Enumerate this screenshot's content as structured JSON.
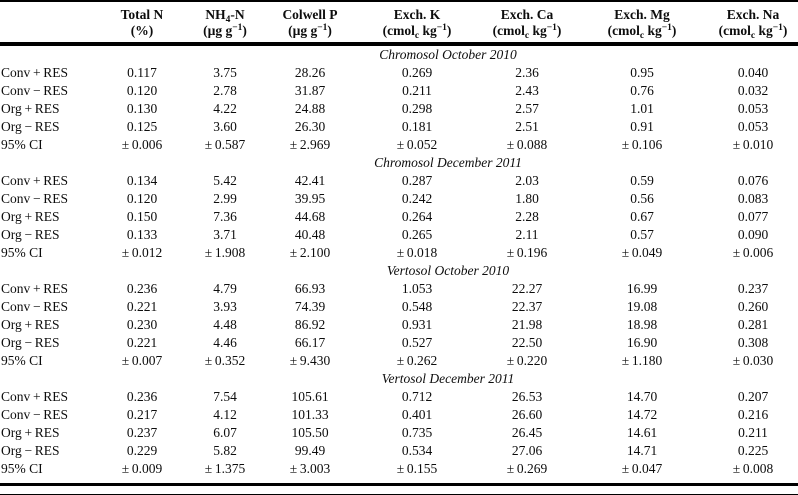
{
  "colors": {
    "background": "#ffffff",
    "text": "#0d0d0d",
    "rule": "#000000"
  },
  "table": {
    "row_label_header": "",
    "columns": [
      {
        "title": "Total N",
        "unit": "(%)"
      },
      {
        "title": "NH_{4}-N",
        "unit": "(µg g^{−1})"
      },
      {
        "title": "Colwell P",
        "unit": "(µg g^{−1})"
      },
      {
        "title": "Exch. K",
        "unit": "(cmol_{c} kg^{−1})"
      },
      {
        "title": "Exch. Ca",
        "unit": "(cmol_{c} kg^{−1})"
      },
      {
        "title": "Exch. Mg",
        "unit": "(cmol_{c} kg^{−1})"
      },
      {
        "title": "Exch. Na",
        "unit": "(cmol_{c} kg^{−1})"
      }
    ],
    "sections": [
      {
        "title": "Chromosol October 2010",
        "rows": [
          {
            "label": "Conv + RES",
            "values": [
              "0.117",
              "3.75",
              "28.26",
              "0.269",
              "2.36",
              "0.95",
              "0.040"
            ]
          },
          {
            "label": "Conv − RES",
            "values": [
              "0.120",
              "2.78",
              "31.87",
              "0.211",
              "2.43",
              "0.76",
              "0.032"
            ]
          },
          {
            "label": "Org + RES",
            "values": [
              "0.130",
              "4.22",
              "24.88",
              "0.298",
              "2.57",
              "1.01",
              "0.053"
            ]
          },
          {
            "label": "Org − RES",
            "values": [
              "0.125",
              "3.60",
              "26.30",
              "0.181",
              "2.51",
              "0.91",
              "0.053"
            ]
          },
          {
            "label": "95% CI",
            "values": [
              "± 0.006",
              "± 0.587",
              "± 2.969",
              "± 0.052",
              "± 0.088",
              "± 0.106",
              "± 0.010"
            ]
          }
        ]
      },
      {
        "title": "Chromosol December 2011",
        "rows": [
          {
            "label": "Conv + RES",
            "values": [
              "0.134",
              "5.42",
              "42.41",
              "0.287",
              "2.03",
              "0.59",
              "0.076"
            ]
          },
          {
            "label": "Conv − RES",
            "values": [
              "0.120",
              "2.99",
              "39.95",
              "0.242",
              "1.80",
              "0.56",
              "0.083"
            ]
          },
          {
            "label": "Org + RES",
            "values": [
              "0.150",
              "7.36",
              "44.68",
              "0.264",
              "2.28",
              "0.67",
              "0.077"
            ]
          },
          {
            "label": "Org − RES",
            "values": [
              "0.133",
              "3.71",
              "40.48",
              "0.265",
              "2.11",
              "0.57",
              "0.090"
            ]
          },
          {
            "label": "95% CI",
            "values": [
              "± 0.012",
              "± 1.908",
              "± 2.100",
              "± 0.018",
              "± 0.196",
              "± 0.049",
              "± 0.006"
            ]
          }
        ]
      },
      {
        "title": "Vertosol October 2010",
        "rows": [
          {
            "label": "Conv + RES",
            "values": [
              "0.236",
              "4.79",
              "66.93",
              "1.053",
              "22.27",
              "16.99",
              "0.237"
            ]
          },
          {
            "label": "Conv − RES",
            "values": [
              "0.221",
              "3.93",
              "74.39",
              "0.548",
              "22.37",
              "19.08",
              "0.260"
            ]
          },
          {
            "label": "Org + RES",
            "values": [
              "0.230",
              "4.48",
              "86.92",
              "0.931",
              "21.98",
              "18.98",
              "0.281"
            ]
          },
          {
            "label": "Org − RES",
            "values": [
              "0.221",
              "4.46",
              "66.17",
              "0.527",
              "22.50",
              "16.90",
              "0.308"
            ]
          },
          {
            "label": "95% CI",
            "values": [
              "± 0.007",
              "± 0.352",
              "± 9.430",
              "± 0.262",
              "± 0.220",
              "± 1.180",
              "± 0.030"
            ]
          }
        ]
      },
      {
        "title": "Vertosol December 2011",
        "rows": [
          {
            "label": "Conv + RES",
            "values": [
              "0.236",
              "7.54",
              "105.61",
              "0.712",
              "26.53",
              "14.70",
              "0.207"
            ]
          },
          {
            "label": "Conv − RES",
            "values": [
              "0.217",
              "4.12",
              "101.33",
              "0.401",
              "26.60",
              "14.72",
              "0.216"
            ]
          },
          {
            "label": "Org + RES",
            "values": [
              "0.237",
              "6.07",
              "105.50",
              "0.735",
              "26.45",
              "14.61",
              "0.211"
            ]
          },
          {
            "label": "Org − RES",
            "values": [
              "0.229",
              "5.82",
              "99.49",
              "0.534",
              "27.06",
              "14.71",
              "0.225"
            ]
          },
          {
            "label": "95% CI",
            "values": [
              "± 0.009",
              "± 1.375",
              "± 3.003",
              "± 0.155",
              "± 0.269",
              "± 0.047",
              "± 0.008"
            ]
          }
        ]
      }
    ]
  }
}
